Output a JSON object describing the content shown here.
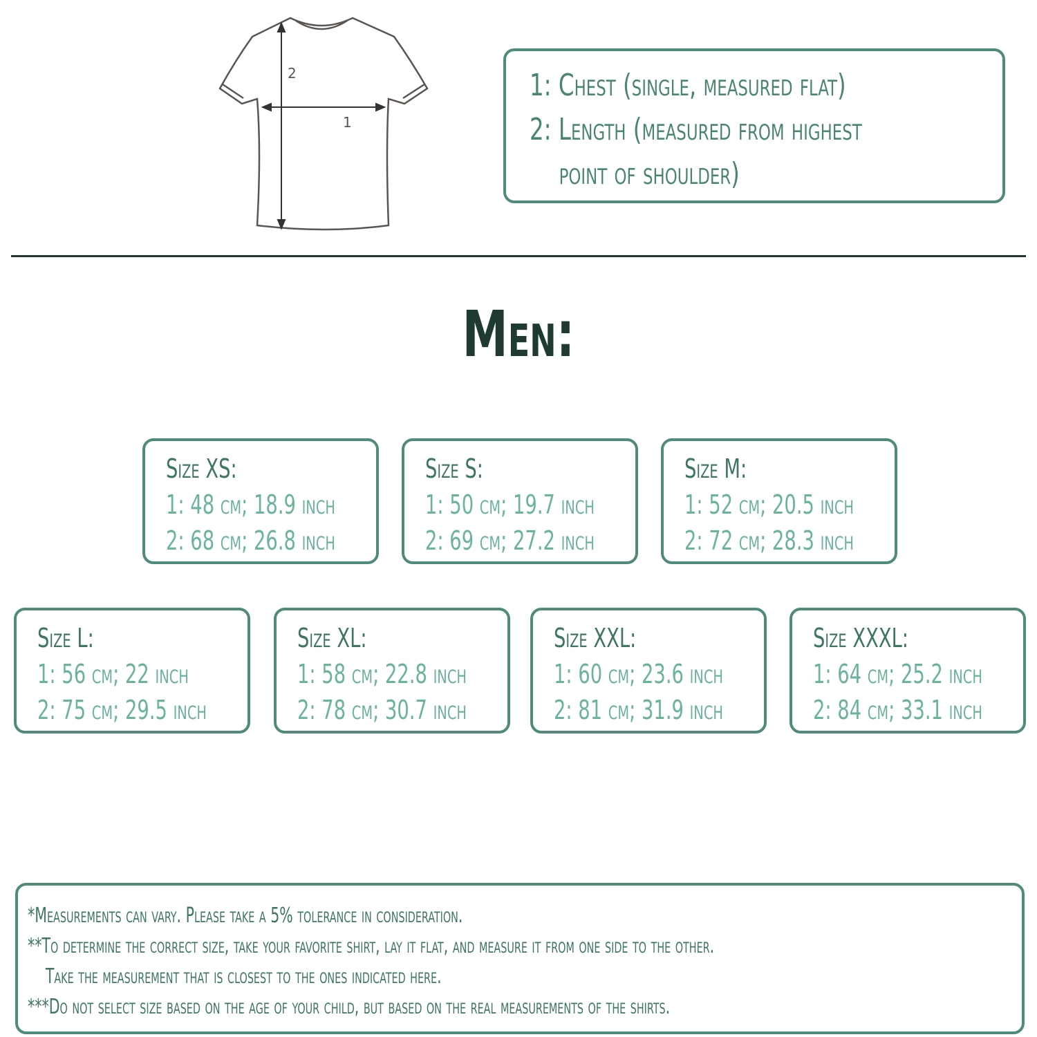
{
  "legend": {
    "line1": "1: Chest (single, measured flat)",
    "line2": "2: Length (measured from highest",
    "line3": "point of shoulder)"
  },
  "diagram": {
    "label_chest": "1",
    "label_length": "2"
  },
  "section_title": "Men:",
  "sizes": [
    {
      "label": "Size XS:",
      "chest": "1: 48 cm; 18.9 inch",
      "length": "2: 68 cm; 26.8 inch"
    },
    {
      "label": "Size S:",
      "chest": "1: 50 cm; 19.7 inch",
      "length": "2: 69 cm; 27.2 inch"
    },
    {
      "label": "Size M:",
      "chest": "1: 52 cm; 20.5 inch",
      "length": "2: 72 cm; 28.3 inch"
    },
    {
      "label": "Size L:",
      "chest": "1: 56 cm; 22 inch",
      "length": "2: 75 cm; 29.5 inch"
    },
    {
      "label": "Size XL:",
      "chest": "1: 58 cm; 22.8 inch",
      "length": "2: 78 cm; 30.7 inch"
    },
    {
      "label": "Size XXL:",
      "chest": "1: 60 cm; 23.6 inch",
      "length": "2: 81 cm; 31.9 inch"
    },
    {
      "label": "Size XXXL:",
      "chest": "1: 64 cm; 25.2 inch",
      "length": "2: 84 cm; 33.1 inch"
    }
  ],
  "notes": {
    "n1": "*Measurements can vary. Please take a 5% tolerance in consideration.",
    "n2": "**To determine the correct size, take your favorite shirt, lay it flat, and measure it from one side to the other.",
    "n2b": "Take the measurement that is closest to the ones indicated here.",
    "n3": "***Do not select size based on the age of your child, but based on the real measurements of the shirts."
  },
  "colors": {
    "border": "#4f8a7a",
    "heading": "#3f7565",
    "value": "#6bb29f",
    "title": "#1f3a31"
  }
}
